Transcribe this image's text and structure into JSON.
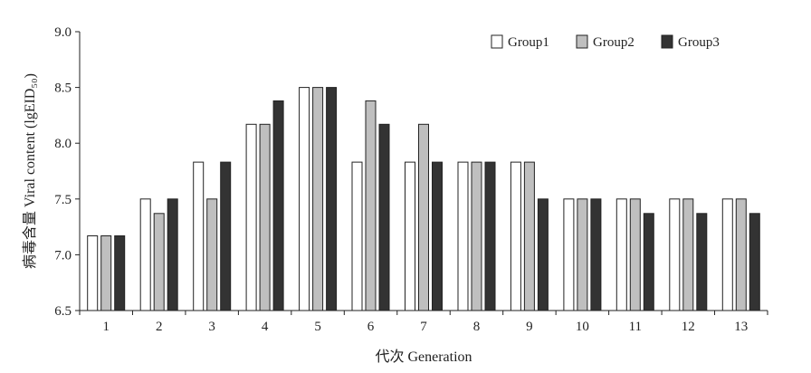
{
  "chart_data": {
    "type": "bar",
    "title": "",
    "xlabel": "代次 Generation",
    "ylabel": "病毒含量 Viral content (lgEID₅₀)",
    "ylim": [
      6.5,
      9.0
    ],
    "yticks": [
      "6.5",
      "7.0",
      "7.5",
      "8.0",
      "8.5",
      "9.0"
    ],
    "grid": false,
    "legend_position": "top-right",
    "categories": [
      "1",
      "2",
      "3",
      "4",
      "5",
      "6",
      "7",
      "8",
      "9",
      "10",
      "11",
      "12",
      "13"
    ],
    "series": [
      {
        "name": "Group1",
        "color": "#ffffff",
        "values": [
          7.17,
          7.5,
          7.83,
          8.17,
          8.5,
          7.83,
          7.83,
          7.83,
          7.83,
          7.5,
          7.5,
          7.5,
          7.5
        ]
      },
      {
        "name": "Group2",
        "color": "#bfbfbf",
        "values": [
          7.17,
          7.37,
          7.5,
          8.17,
          8.5,
          8.38,
          8.17,
          7.83,
          7.83,
          7.5,
          7.5,
          7.5,
          7.5
        ]
      },
      {
        "name": "Group3",
        "color": "#333333",
        "values": [
          7.17,
          7.5,
          7.83,
          8.38,
          8.5,
          8.17,
          7.83,
          7.83,
          7.5,
          7.5,
          7.37,
          7.37,
          7.37
        ]
      }
    ]
  }
}
